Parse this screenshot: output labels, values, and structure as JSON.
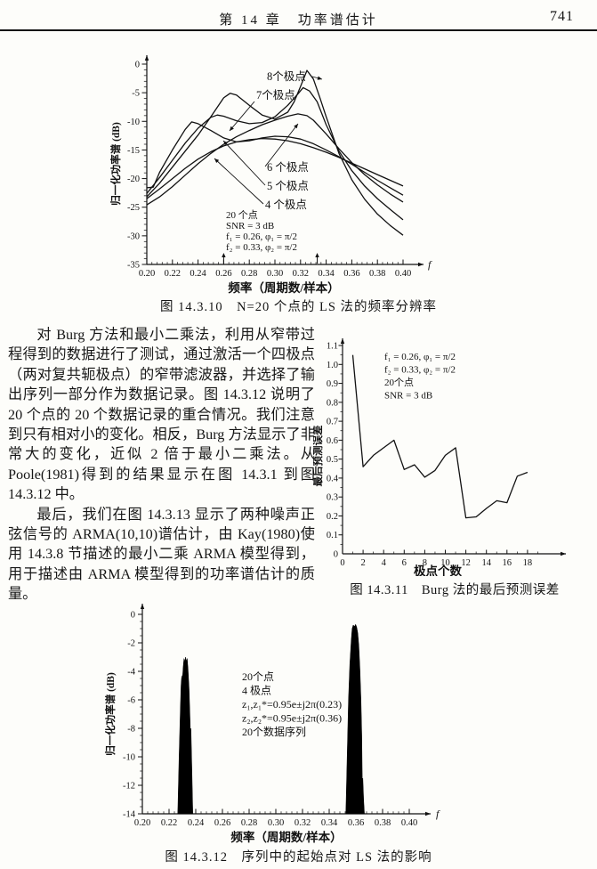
{
  "page": {
    "header_title": "第 14 章　功率谱估计",
    "page_number": "741"
  },
  "paragraphs": [
    "对 Burg 方法和最小二乘法，利用从窄带过程得到的数据进行了测试，通过激活一个四极点（两对复共轭极点）的窄带滤波器，并选择了输出序列一部分作为数据记录。图 14.3.12 说明了 20 个点的 20 个数据记录的重合情况。我们注意到只有相对小的变化。相反，Burg 方法显示了非常大的变化，近似 2 倍于最小二乘法。从 Poole(1981)得到的结果显示在图 14.3.1 到图 14.3.12 中。",
    "最后，我们在图 14.3.13 显示了两种噪声正弦信号的 ARMA(10,10)谱估计，由 Kay(1980)使用 14.3.8 节描述的最小二乘 ARMA 模型得到，用于描述由 ARMA 模型得到的功率谱估计的质量。"
  ],
  "chart_data": [
    {
      "id": "fig-14-3-10",
      "type": "line",
      "caption": "图 14.3.10　N=20 个点的 LS 法的频率分辨率",
      "xlabel": "频率（周期数/样本）",
      "ylabel": "归一化功率谱 (dB)",
      "x_axis_end_label": "f",
      "xlim": [
        0.2,
        0.4
      ],
      "ylim": [
        -35,
        0
      ],
      "x_ticks": [
        "0.20",
        "0.22",
        "0.24",
        "0.26",
        "0.28",
        "0.30",
        "0.32",
        "0.34",
        "0.36",
        "0.38",
        "0.40"
      ],
      "y_ticks": [
        "0",
        "-5",
        "-10",
        "-15",
        "-20",
        "-25",
        "-30",
        "-35"
      ],
      "annotations": [
        "20 个点",
        "SNR = 3 dB",
        "f₁ = 0.26, φ₁ = π/2",
        "f₂ = 0.33, φ₂ = π/2"
      ],
      "marker_frequencies": [
        0.26,
        0.333
      ],
      "series": [
        {
          "name": "4 个极点",
          "points": [
            [
              0.2,
              -23.5
            ],
            [
              0.21,
              -21.8
            ],
            [
              0.22,
              -20.0
            ],
            [
              0.23,
              -18.2
            ],
            [
              0.24,
              -16.6
            ],
            [
              0.25,
              -15.3
            ],
            [
              0.26,
              -14.3
            ],
            [
              0.27,
              -13.6
            ],
            [
              0.28,
              -13.2
            ],
            [
              0.29,
              -13.0
            ],
            [
              0.3,
              -13.1
            ],
            [
              0.31,
              -13.4
            ],
            [
              0.32,
              -13.9
            ],
            [
              0.33,
              -14.6
            ],
            [
              0.34,
              -15.4
            ],
            [
              0.35,
              -16.3
            ],
            [
              0.36,
              -17.3
            ],
            [
              0.37,
              -18.3
            ],
            [
              0.38,
              -19.3
            ],
            [
              0.39,
              -20.3
            ],
            [
              0.4,
              -21.3
            ]
          ]
        },
        {
          "name": "5 个极点",
          "points": [
            [
              0.2,
              -21.6
            ],
            [
              0.205,
              -21.5
            ],
            [
              0.21,
              -18.9
            ],
            [
              0.22,
              -15.0
            ],
            [
              0.23,
              -11.4
            ],
            [
              0.235,
              -10.1
            ],
            [
              0.24,
              -10.4
            ],
            [
              0.25,
              -11.6
            ],
            [
              0.26,
              -12.9
            ],
            [
              0.27,
              -13.6
            ],
            [
              0.28,
              -13.4
            ],
            [
              0.29,
              -12.9
            ],
            [
              0.3,
              -12.6
            ],
            [
              0.31,
              -12.7
            ],
            [
              0.32,
              -13.1
            ],
            [
              0.33,
              -13.9
            ],
            [
              0.34,
              -15.0
            ],
            [
              0.35,
              -16.2
            ],
            [
              0.36,
              -17.5
            ],
            [
              0.37,
              -18.9
            ],
            [
              0.38,
              -20.3
            ],
            [
              0.39,
              -21.6
            ],
            [
              0.4,
              -22.9
            ]
          ]
        },
        {
          "name": "6 个极点",
          "points": [
            [
              0.2,
              -24.6
            ],
            [
              0.21,
              -23.2
            ],
            [
              0.22,
              -21.4
            ],
            [
              0.23,
              -19.4
            ],
            [
              0.24,
              -17.4
            ],
            [
              0.25,
              -15.6
            ],
            [
              0.26,
              -14.0
            ],
            [
              0.27,
              -12.7
            ],
            [
              0.28,
              -11.6
            ],
            [
              0.29,
              -10.6
            ],
            [
              0.3,
              -9.8
            ],
            [
              0.31,
              -9.1
            ],
            [
              0.318,
              -8.7
            ],
            [
              0.325,
              -9.0
            ],
            [
              0.33,
              -9.8
            ],
            [
              0.34,
              -12.2
            ],
            [
              0.35,
              -14.8
            ],
            [
              0.36,
              -17.2
            ],
            [
              0.37,
              -19.3
            ],
            [
              0.38,
              -21.1
            ],
            [
              0.39,
              -22.7
            ],
            [
              0.4,
              -24.1
            ]
          ]
        },
        {
          "name": "7个极点",
          "points": [
            [
              0.2,
              -22.6
            ],
            [
              0.21,
              -19.8
            ],
            [
              0.22,
              -16.8
            ],
            [
              0.23,
              -13.8
            ],
            [
              0.24,
              -11.2
            ],
            [
              0.25,
              -9.3
            ],
            [
              0.255,
              -8.9
            ],
            [
              0.26,
              -9.1
            ],
            [
              0.27,
              -9.9
            ],
            [
              0.28,
              -10.4
            ],
            [
              0.29,
              -10.2
            ],
            [
              0.3,
              -9.2
            ],
            [
              0.31,
              -7.2
            ],
            [
              0.318,
              -5.2
            ],
            [
              0.322,
              -4.1
            ],
            [
              0.327,
              -4.7
            ],
            [
              0.333,
              -6.6
            ],
            [
              0.34,
              -10.6
            ],
            [
              0.35,
              -15.2
            ],
            [
              0.36,
              -18.6
            ],
            [
              0.37,
              -21.3
            ],
            [
              0.38,
              -23.5
            ],
            [
              0.39,
              -25.4
            ],
            [
              0.4,
              -27.2
            ]
          ]
        },
        {
          "name": "8个极点",
          "points": [
            [
              0.2,
              -23.2
            ],
            [
              0.21,
              -20.8
            ],
            [
              0.22,
              -18.0
            ],
            [
              0.23,
              -15.2
            ],
            [
              0.24,
              -12.4
            ],
            [
              0.25,
              -9.2
            ],
            [
              0.26,
              -5.9
            ],
            [
              0.265,
              -5.1
            ],
            [
              0.27,
              -5.4
            ],
            [
              0.28,
              -7.2
            ],
            [
              0.29,
              -8.9
            ],
            [
              0.3,
              -9.6
            ],
            [
              0.31,
              -8.4
            ],
            [
              0.315,
              -6.6
            ],
            [
              0.32,
              -3.9
            ],
            [
              0.325,
              -1.1
            ],
            [
              0.33,
              -2.6
            ],
            [
              0.335,
              -5.8
            ],
            [
              0.34,
              -9.2
            ],
            [
              0.35,
              -15.6
            ],
            [
              0.36,
              -20.2
            ],
            [
              0.37,
              -23.6
            ],
            [
              0.38,
              -26.2
            ],
            [
              0.39,
              -28.2
            ],
            [
              0.4,
              -29.9
            ]
          ]
        }
      ]
    },
    {
      "id": "fig-14-3-11",
      "type": "line",
      "caption": "图 14.3.11　Burg 法的最后预测误差",
      "xlabel": "极点个数",
      "ylabel": "最后预测误差",
      "xlim": [
        0,
        20
      ],
      "ylim": [
        0,
        1.1
      ],
      "x_ticks": [
        "0",
        "2",
        "4",
        "6",
        "8",
        "10",
        "12",
        "14",
        "16",
        "18"
      ],
      "y_ticks": [
        "0",
        "0.1",
        "0.2",
        "0.3",
        "0.4",
        "0.5",
        "0.6",
        "0.7",
        "0.8",
        "0.9",
        "1.0",
        "1.1"
      ],
      "annotations": [
        "f₁ = 0.26, φ₁ = π/2",
        "f₂ = 0.33, φ₂ = π/2",
        "20个点",
        "SNR = 3 dB"
      ],
      "x": [
        1,
        2,
        3,
        4,
        5,
        6,
        7,
        8,
        9,
        10,
        11,
        12,
        13,
        14,
        15,
        16,
        17,
        18
      ],
      "values": [
        1.05,
        0.46,
        0.52,
        0.56,
        0.6,
        0.445,
        0.47,
        0.405,
        0.44,
        0.52,
        0.56,
        0.19,
        0.195,
        0.24,
        0.28,
        0.27,
        0.41,
        0.43
      ]
    },
    {
      "id": "fig-14-3-12",
      "type": "area",
      "caption": "图 14.3.12　序列中的起始点对 LS 法的影响",
      "xlabel": "频率（周期数/样本）",
      "ylabel": "归一化功率谱 (dB)",
      "x_axis_end_label": "f",
      "xlim": [
        0.2,
        0.4
      ],
      "ylim": [
        -14,
        0
      ],
      "x_ticks": [
        "0.20",
        "0.22",
        "0.24",
        "0.26",
        "0.28",
        "0.30",
        "0.32",
        "0.34",
        "0.36",
        "0.38",
        "0.40"
      ],
      "y_ticks": [
        "0",
        "-2",
        "-4",
        "-6",
        "-8",
        "-10",
        "-12",
        "-14"
      ],
      "annotations": [
        "20个点",
        "4 极点",
        "z₁,z₁*=0.95e±j2π(0.23)",
        "z₂,z₂*=0.95e±j2π(0.36)",
        "20个数据序列"
      ],
      "peaks": [
        {
          "points": [
            [
              0.2265,
              -14
            ],
            [
              0.2275,
              -10
            ],
            [
              0.2285,
              -6.5
            ],
            [
              0.229,
              -5.0
            ],
            [
              0.2295,
              -4.3
            ],
            [
              0.23,
              -4.6
            ],
            [
              0.2306,
              -3.7
            ],
            [
              0.2312,
              -3.1
            ],
            [
              0.2318,
              -3.3
            ],
            [
              0.2324,
              -3.0
            ],
            [
              0.233,
              -3.3
            ],
            [
              0.2336,
              -3.1
            ],
            [
              0.2342,
              -3.8
            ],
            [
              0.235,
              -5.2
            ],
            [
              0.2356,
              -7.0
            ],
            [
              0.236,
              -8.3
            ],
            [
              0.2364,
              -8.0
            ],
            [
              0.237,
              -10.5
            ],
            [
              0.2378,
              -14
            ]
          ]
        },
        {
          "points": [
            [
              0.3525,
              -14
            ],
            [
              0.3535,
              -10
            ],
            [
              0.3545,
              -6.0
            ],
            [
              0.3555,
              -3.5
            ],
            [
              0.3565,
              -1.8
            ],
            [
              0.3572,
              -1.0
            ],
            [
              0.358,
              -0.75
            ],
            [
              0.359,
              -0.85
            ],
            [
              0.3598,
              -0.7
            ],
            [
              0.3606,
              -0.9
            ],
            [
              0.3614,
              -1.3
            ],
            [
              0.3622,
              -2.2
            ],
            [
              0.363,
              -3.8
            ],
            [
              0.3638,
              -6.0
            ],
            [
              0.3644,
              -8.5
            ],
            [
              0.3648,
              -11.8
            ],
            [
              0.3652,
              -11.5
            ],
            [
              0.3658,
              -13.0
            ],
            [
              0.3664,
              -14
            ]
          ]
        }
      ]
    }
  ]
}
